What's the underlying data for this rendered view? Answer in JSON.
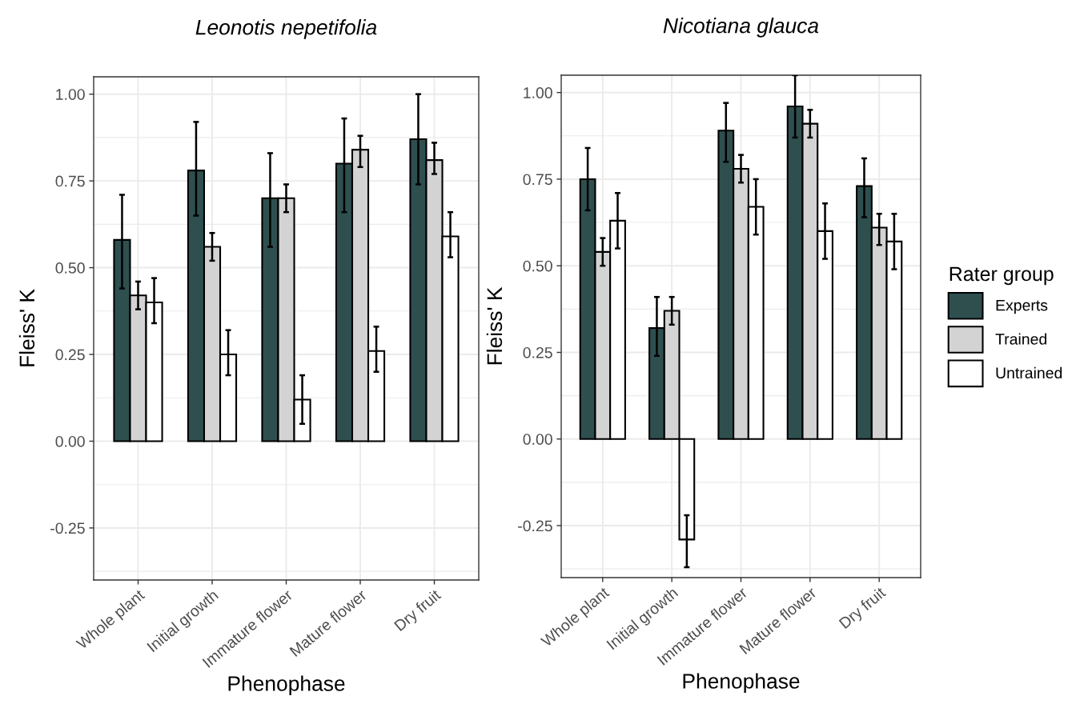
{
  "chart_data": [
    {
      "type": "bar",
      "title": "Leonotis nepetifolia",
      "xlabel": "Phenophase",
      "ylabel": "Fleiss' K",
      "categories": [
        "Whole plant",
        "Initial growth",
        "Immature flower",
        "Mature flower",
        "Dry fruit"
      ],
      "series": [
        {
          "color": "#2f4f4f",
          "values": [
            0.58,
            0.78,
            0.7,
            0.8,
            0.87
          ],
          "errors": [
            [
              0.44,
              0.71
            ],
            [
              0.65,
              0.92
            ],
            [
              0.56,
              0.83
            ],
            [
              0.66,
              0.93
            ],
            [
              0.74,
              1.0
            ]
          ]
        },
        {
          "color": "#d3d3d3",
          "values": [
            0.42,
            0.56,
            0.7,
            0.84,
            0.81
          ],
          "errors": [
            [
              0.38,
              0.46
            ],
            [
              0.52,
              0.6
            ],
            [
              0.66,
              0.74
            ],
            [
              0.79,
              0.88
            ],
            [
              0.77,
              0.86
            ]
          ]
        },
        {
          "color": "#ffffff",
          "values": [
            0.4,
            0.25,
            0.12,
            0.26,
            0.59
          ],
          "errors": [
            [
              0.34,
              0.47
            ],
            [
              0.19,
              0.32
            ],
            [
              0.05,
              0.19
            ],
            [
              0.2,
              0.33
            ],
            [
              0.53,
              0.66
            ]
          ]
        }
      ],
      "ylim": [
        -0.4,
        1.05
      ],
      "yticks": [
        {
          "value": -0.25,
          "label": "-0.25"
        },
        {
          "value": 0,
          "label": "0.00"
        },
        {
          "value": 0.25,
          "label": "0.25"
        },
        {
          "value": 0.5,
          "label": "0.50"
        },
        {
          "value": 0.75,
          "label": "0.75"
        },
        {
          "value": 1,
          "label": "1.00"
        }
      ],
      "grid": true
    },
    {
      "type": "bar",
      "title": "Nicotiana glauca",
      "xlabel": "Phenophase",
      "ylabel": "Fleiss' K",
      "legend_title": "Rater group",
      "categories": [
        "Whole plant",
        "Initial growth",
        "Immature flower",
        "Mature flower",
        "Dry fruit"
      ],
      "series": [
        {
          "name": "Experts",
          "color": "#2f4f4f",
          "values": [
            0.75,
            0.32,
            0.89,
            0.96,
            0.73
          ],
          "errors": [
            [
              0.66,
              0.84
            ],
            [
              0.24,
              0.41
            ],
            [
              0.8,
              0.97
            ],
            [
              0.87,
              1.05
            ],
            [
              0.64,
              0.81
            ]
          ]
        },
        {
          "name": "Trained",
          "color": "#d3d3d3",
          "values": [
            0.54,
            0.37,
            0.78,
            0.91,
            0.61
          ],
          "errors": [
            [
              0.5,
              0.58
            ],
            [
              0.33,
              0.41
            ],
            [
              0.74,
              0.82
            ],
            [
              0.87,
              0.95
            ],
            [
              0.56,
              0.65
            ]
          ]
        },
        {
          "name": "Untrained",
          "color": "#ffffff",
          "values": [
            0.63,
            -0.29,
            0.67,
            0.6,
            0.57
          ],
          "errors": [
            [
              0.55,
              0.71
            ],
            [
              -0.37,
              -0.22
            ],
            [
              0.59,
              0.75
            ],
            [
              0.52,
              0.68
            ],
            [
              0.49,
              0.65
            ]
          ]
        }
      ],
      "ylim": [
        -0.4,
        1.05
      ],
      "yticks": [
        {
          "value": -0.25,
          "label": "-0.25"
        },
        {
          "value": 0,
          "label": "0.00"
        },
        {
          "value": 0.25,
          "label": "0.25"
        },
        {
          "value": 0.5,
          "label": "0.50"
        },
        {
          "value": 0.75,
          "label": "0.75"
        },
        {
          "value": 1,
          "label": "1.00"
        }
      ],
      "grid": true,
      "legend": "right"
    }
  ]
}
